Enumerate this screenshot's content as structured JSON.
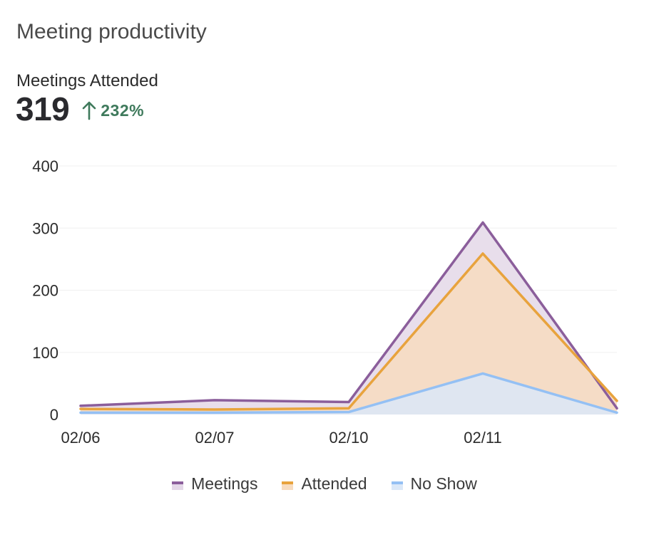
{
  "card": {
    "title": "Meeting productivity",
    "kpi_label": "Meetings Attended",
    "kpi_value": "319",
    "kpi_delta": "232%",
    "kpi_delta_icon": "arrow-up-icon",
    "delta_color": "#3f7a5c"
  },
  "chart_data": {
    "type": "area",
    "x": [
      "02/06",
      "02/07",
      "02/10",
      "02/11",
      ""
    ],
    "ylim": [
      0,
      400
    ],
    "yticks": [
      0,
      100,
      200,
      300,
      400
    ],
    "grid": true,
    "legend_position": "bottom",
    "series": [
      {
        "name": "Meetings",
        "values": [
          14,
          23,
          20,
          309,
          10
        ],
        "color": "#8b5e9b",
        "fill": "#e4d8e8"
      },
      {
        "name": "Attended",
        "values": [
          9,
          8,
          10,
          259,
          22
        ],
        "color": "#e8a33d",
        "fill": "#f7dcc0"
      },
      {
        "name": "No Show",
        "values": [
          3,
          3,
          4,
          66,
          3
        ],
        "color": "#94c0f4",
        "fill": "#dbe8f8"
      }
    ]
  }
}
